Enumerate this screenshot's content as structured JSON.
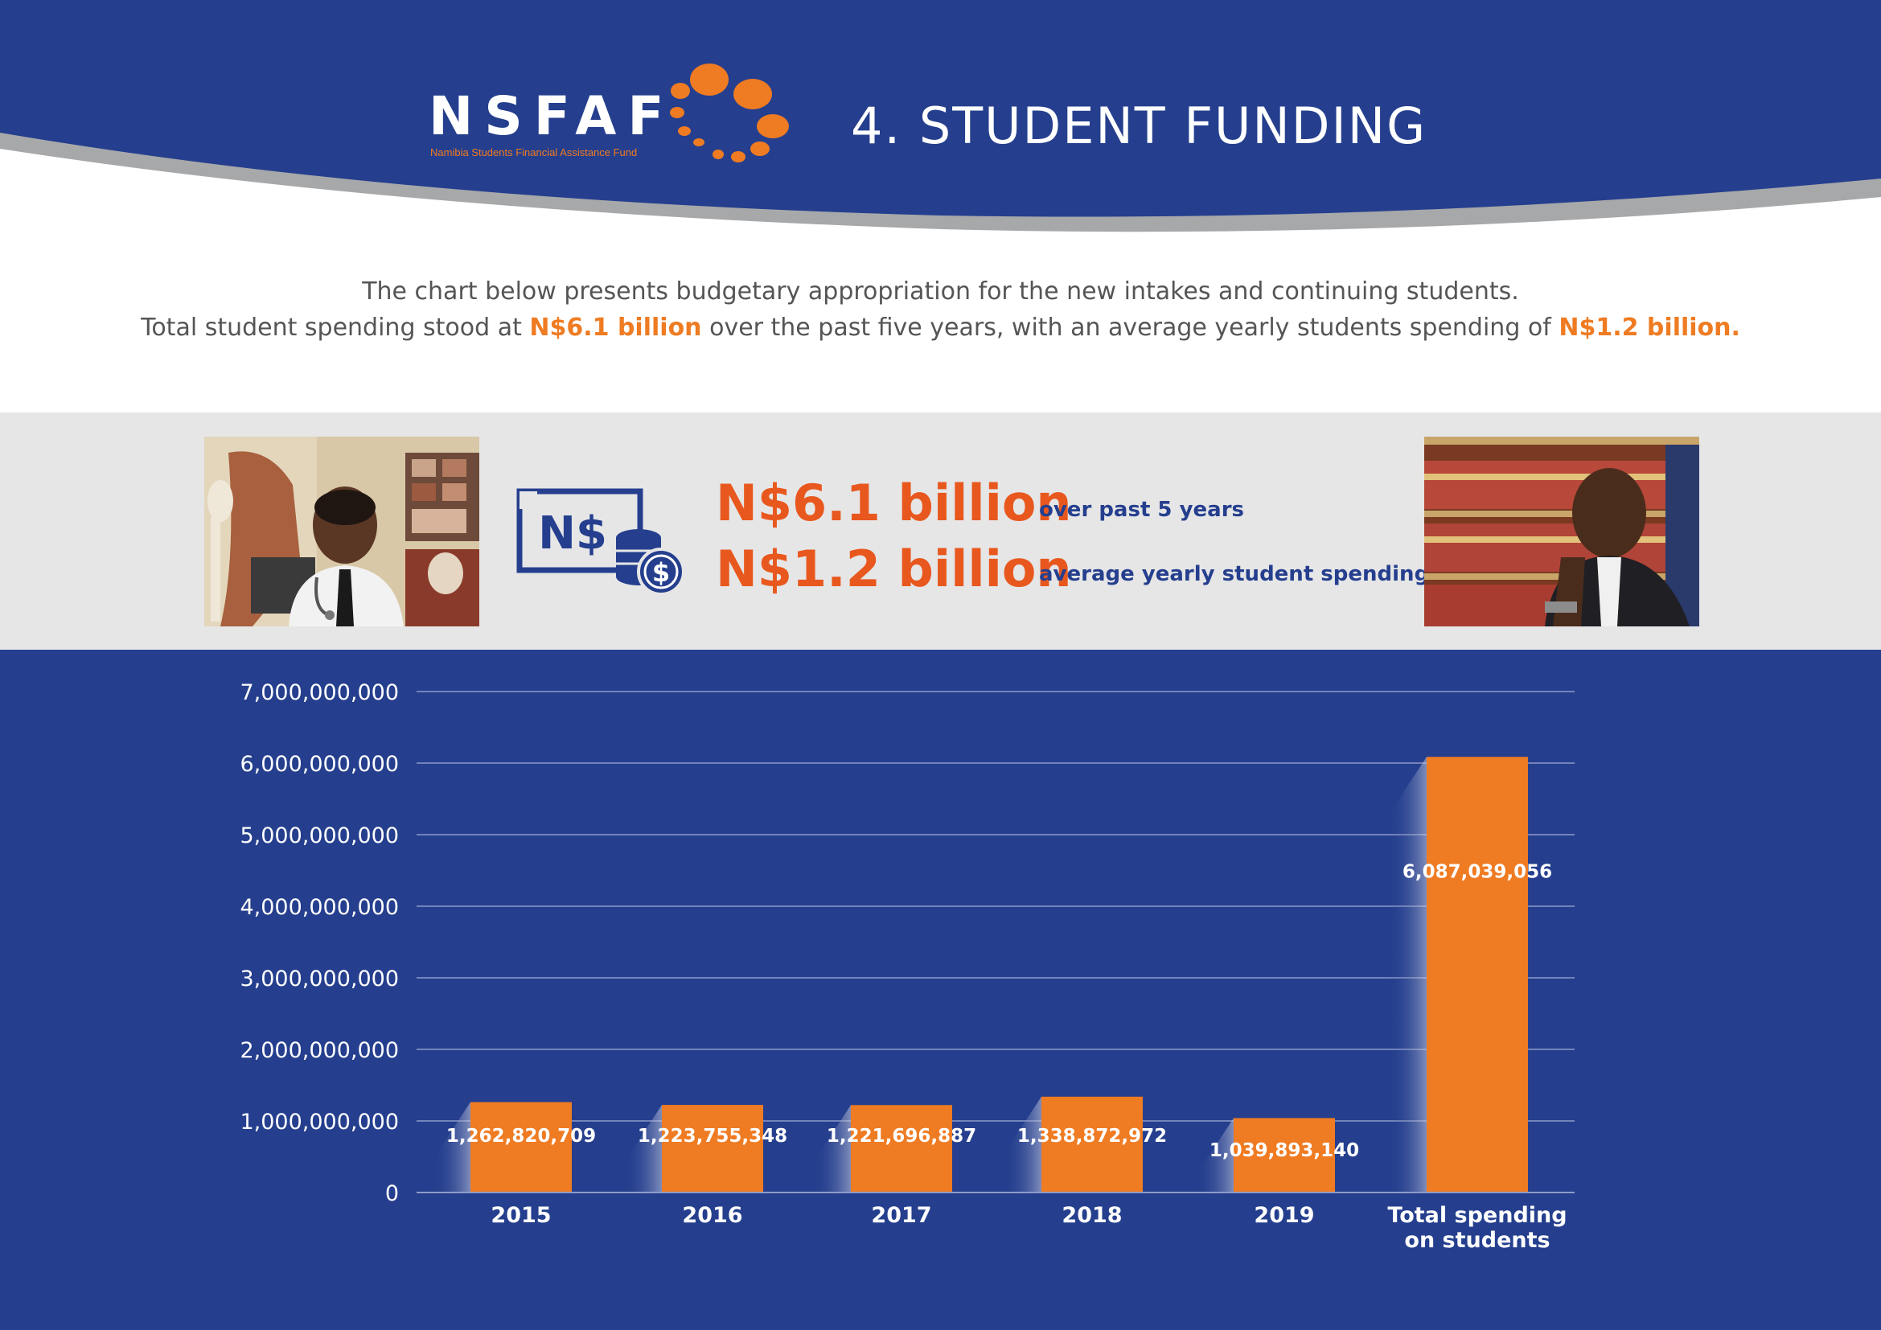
{
  "brand": {
    "logo_text": "NSFAF",
    "logo_subtitle": "Namibia Students Financial Assistance Fund",
    "colors": {
      "navy": "#253f8e",
      "orange": "#ef7b22",
      "grey": "#a7a8aa"
    }
  },
  "page_title": "4. STUDENT FUNDING",
  "intro": {
    "line1": "The chart below presents budgetary appropriation for the new intakes and continuing students.",
    "line2_before": "Total student spending stood at ",
    "line2_highlight1": "N$6.1 billion",
    "line2_middle": " over the past five years, with an average yearly students spending of ",
    "line2_highlight2": "N$1.2 billion."
  },
  "summary": {
    "icon_text": "N$",
    "stat1_value": "N$6.1 billion",
    "stat1_label": "over past 5 years",
    "stat2_value": "N$1.2 billion",
    "stat2_label": "average yearly student spending"
  },
  "chart_data": {
    "type": "bar",
    "categories": [
      "2015",
      "2016",
      "2017",
      "2018",
      "2019",
      "Total spending on students"
    ],
    "values": [
      1262820709,
      1223755348,
      1221696887,
      1338872972,
      1039893140,
      6087039056
    ],
    "data_labels": [
      "1,262,820,709",
      "1,223,755,348",
      "1,221,696,887",
      "1,338,872,972",
      "1,039,893,140",
      "6,087,039,056"
    ],
    "y_ticks": [
      "0",
      "1,000,000,000",
      "2,000,000,000",
      "3,000,000,000",
      "4,000,000,000",
      "5,000,000,000",
      "6,000,000,000",
      "7,000,000,000"
    ],
    "ylim": [
      0,
      7000000000
    ],
    "grid": true,
    "bar_color": "#ef7b22"
  }
}
